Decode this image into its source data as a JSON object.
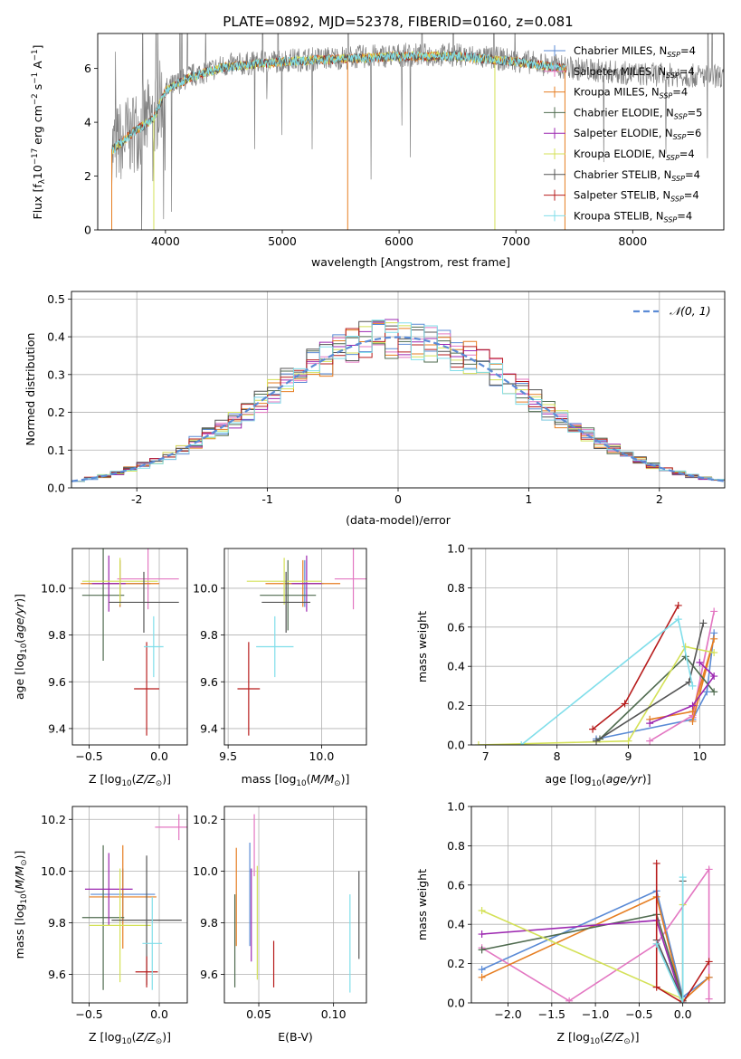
{
  "title": "PLATE=0892, MJD=52378, FIBERID=0160, z=0.081",
  "palette": {
    "Chabrier MILES": "#5b8bd6",
    "Salpeter MILES": "#e377c2",
    "Kroupa MILES": "#e67e22",
    "Chabrier ELODIE": "#4f6b4f",
    "Salpeter ELODIE": "#9c27b0",
    "Kroupa ELODIE": "#d4e157",
    "Chabrier STELIB": "#555555",
    "Salpeter STELIB": "#b71c1c",
    "Kroupa STELIB": "#80deea"
  },
  "chart_data": [
    {
      "id": "spectrum",
      "type": "line",
      "xlabel": "wavelength [Angstrom, rest frame]",
      "ylabel": "Flux [f",
      "ylabel_parts": [
        "Flux [f",
        "λ",
        "10",
        "−17",
        " erg cm",
        "−2",
        " s",
        "−1",
        " A",
        "−1",
        "]"
      ],
      "xlim": [
        3420,
        8780
      ],
      "ylim": [
        0,
        7.3
      ],
      "xticks": [
        4000,
        5000,
        6000,
        7000,
        8000
      ],
      "yticks": [
        0,
        2,
        4,
        6
      ],
      "grid": false,
      "legend_position": "top-right",
      "series": [
        {
          "name": "Chabrier MILES",
          "nssp": "4"
        },
        {
          "name": "Salpeter MILES",
          "nssp": "4"
        },
        {
          "name": "Kroupa MILES",
          "nssp": "4"
        },
        {
          "name": "Chabrier ELODIE",
          "nssp": "5"
        },
        {
          "name": "Salpeter ELODIE",
          "nssp": "6"
        },
        {
          "name": "Kroupa ELODIE",
          "nssp": "4"
        },
        {
          "name": "Chabrier STELIB",
          "nssp": "4"
        },
        {
          "name": "Salpeter STELIB",
          "nssp": "4"
        },
        {
          "name": "Kroupa STELIB",
          "nssp": "4"
        }
      ],
      "data_spectrum": {
        "x_range": [
          3540,
          8780
        ],
        "continuum": [
          [
            3540,
            3.0
          ],
          [
            3700,
            3.6
          ],
          [
            3900,
            4.2
          ],
          [
            4000,
            5.2
          ],
          [
            4200,
            5.7
          ],
          [
            4500,
            6.1
          ],
          [
            5000,
            6.3
          ],
          [
            5500,
            6.4
          ],
          [
            6000,
            6.5
          ],
          [
            6500,
            6.5
          ],
          [
            7000,
            6.3
          ],
          [
            7500,
            6.0
          ],
          [
            8000,
            5.8
          ],
          [
            8780,
            5.7
          ]
        ]
      },
      "model_range": [
        3540,
        7430
      ]
    },
    {
      "id": "residuals",
      "type": "histogram",
      "xlabel": "(data-model)/error",
      "ylabel": "Normed distribution",
      "xlim": [
        -2.5,
        2.5
      ],
      "ylim": [
        0,
        0.52
      ],
      "xticks": [
        -2,
        -1,
        0,
        1,
        2
      ],
      "yticks": [
        0.0,
        0.1,
        0.2,
        0.3,
        0.4,
        0.5
      ],
      "grid": true,
      "legend": "𝒩(0, 1)",
      "legend_position": "top-right",
      "reference_curve": "normal(0,1)",
      "bin_edges_start": -2.5,
      "bin_width": 0.1,
      "bin_count": 50
    },
    {
      "id": "age-vs-Z",
      "type": "errorbar",
      "xlabel": "Z [log10(Z/Z⊙)]",
      "ylabel": "age  [log10(age/yr)]",
      "xlim": [
        -0.62,
        0.2
      ],
      "ylim": [
        9.33,
        10.17
      ],
      "xticks": [
        -0.5,
        0.0
      ],
      "xtick_labels": [
        "−0.5",
        "0.0"
      ],
      "yticks": [
        9.4,
        9.6,
        9.8,
        10.0
      ],
      "grid": true,
      "points": [
        {
          "series": "Chabrier MILES",
          "x": -0.28,
          "y": 10.02,
          "xerr": 0.22,
          "yerr": 0.1
        },
        {
          "series": "Salpeter MILES",
          "x": -0.08,
          "y": 10.04,
          "xerr": 0.22,
          "yerr": 0.13
        },
        {
          "series": "Kroupa MILES",
          "x": -0.28,
          "y": 10.02,
          "xerr": 0.28,
          "yerr": 0.1
        },
        {
          "series": "Chabrier ELODIE",
          "x": -0.4,
          "y": 9.97,
          "xerr": 0.15,
          "yerr": 0.28
        },
        {
          "series": "Salpeter ELODIE",
          "x": -0.36,
          "y": 10.02,
          "xerr": 0.12,
          "yerr": 0.12
        },
        {
          "series": "Kroupa ELODIE",
          "x": -0.28,
          "y": 10.03,
          "xerr": 0.27,
          "yerr": 0.1
        },
        {
          "series": "Chabrier STELIB",
          "x": -0.11,
          "y": 9.94,
          "xerr": 0.25,
          "yerr": 0.13
        },
        {
          "series": "Salpeter STELIB",
          "x": -0.09,
          "y": 9.57,
          "xerr": 0.09,
          "yerr": 0.2
        },
        {
          "series": "Kroupa STELIB",
          "x": -0.04,
          "y": 9.75,
          "xerr": 0.07,
          "yerr": 0.13
        }
      ]
    },
    {
      "id": "age-vs-mass",
      "type": "errorbar",
      "xlabel": "mass [log10(M/M⊙)]",
      "ylabel": "",
      "xlim": [
        9.48,
        10.24
      ],
      "ylim": [
        9.33,
        10.17
      ],
      "xticks": [
        9.5,
        10.0
      ],
      "xtick_labels": [
        "9.5",
        "10.0"
      ],
      "yticks": [
        9.4,
        9.6,
        9.8,
        10.0
      ],
      "grid": true,
      "points": [
        {
          "series": "Chabrier MILES",
          "x": 9.91,
          "y": 10.02,
          "xerr": 0.1,
          "yerr": 0.1
        },
        {
          "series": "Salpeter MILES",
          "x": 10.17,
          "y": 10.04,
          "xerr": 0.1,
          "yerr": 0.13
        },
        {
          "series": "Kroupa MILES",
          "x": 9.9,
          "y": 10.02,
          "xerr": 0.2,
          "yerr": 0.1
        },
        {
          "series": "Chabrier ELODIE",
          "x": 9.82,
          "y": 9.97,
          "xerr": 0.15,
          "yerr": 0.15
        },
        {
          "series": "Salpeter ELODIE",
          "x": 9.92,
          "y": 10.02,
          "xerr": 0.08,
          "yerr": 0.12
        },
        {
          "series": "Kroupa ELODIE",
          "x": 9.8,
          "y": 10.03,
          "xerr": 0.2,
          "yerr": 0.1
        },
        {
          "series": "Chabrier STELIB",
          "x": 9.81,
          "y": 9.94,
          "xerr": 0.13,
          "yerr": 0.13
        },
        {
          "series": "Salpeter STELIB",
          "x": 9.61,
          "y": 9.57,
          "xerr": 0.06,
          "yerr": 0.2
        },
        {
          "series": "Kroupa STELIB",
          "x": 9.75,
          "y": 9.75,
          "xerr": 0.1,
          "yerr": 0.13
        }
      ]
    },
    {
      "id": "weight-vs-age",
      "type": "line",
      "xlabel": "age  [log10(age/yr)]",
      "ylabel": "mass weight",
      "xlim": [
        6.8,
        10.35
      ],
      "ylim": [
        0,
        1.0
      ],
      "xticks": [
        7,
        8,
        9,
        10
      ],
      "yticks": [
        0.0,
        0.2,
        0.4,
        0.6,
        0.8,
        1.0
      ],
      "grid": true,
      "series": [
        {
          "name": "Chabrier MILES",
          "x": [
            8.55,
            9.9,
            10.1,
            10.2
          ],
          "y": [
            0.03,
            0.13,
            0.27,
            0.57
          ]
        },
        {
          "name": "Salpeter MILES",
          "x": [
            9.3,
            9.9,
            10.2,
            9.9
          ],
          "y": [
            0.02,
            0.15,
            0.68,
            0.14
          ]
        },
        {
          "name": "Kroupa MILES",
          "x": [
            9.3,
            9.9,
            10.2,
            9.9
          ],
          "y": [
            0.13,
            0.17,
            0.54,
            0.12
          ]
        },
        {
          "name": "Chabrier ELODIE",
          "x": [
            8.6,
            9.8,
            10.2
          ],
          "y": [
            0.03,
            0.45,
            0.27
          ]
        },
        {
          "name": "Salpeter ELODIE",
          "x": [
            9.3,
            9.9,
            10.2,
            10.0
          ],
          "y": [
            0.11,
            0.2,
            0.35,
            0.42
          ]
        },
        {
          "name": "Kroupa ELODIE",
          "x": [
            6.9,
            9.0,
            9.8,
            10.2
          ],
          "y": [
            0.0,
            0.02,
            0.5,
            0.47
          ]
        },
        {
          "name": "Chabrier STELIB",
          "x": [
            8.55,
            9.85,
            10.05
          ],
          "y": [
            0.02,
            0.32,
            0.62
          ]
        },
        {
          "name": "Salpeter STELIB",
          "x": [
            8.5,
            8.95,
            9.7
          ],
          "y": [
            0.08,
            0.21,
            0.71
          ]
        },
        {
          "name": "Kroupa STELIB",
          "x": [
            7.5,
            9.7,
            9.9
          ],
          "y": [
            0.0,
            0.64,
            0.3
          ]
        }
      ]
    },
    {
      "id": "mass-vs-Z",
      "type": "errorbar",
      "xlabel": "Z [log10(Z/Z⊙)]",
      "ylabel": "mass [log10(M/M⊙)]",
      "xlim": [
        -0.62,
        0.2
      ],
      "ylim": [
        9.49,
        10.25
      ],
      "xticks": [
        -0.5,
        0.0
      ],
      "xtick_labels": [
        "−0.5",
        "0.0"
      ],
      "yticks": [
        9.6,
        9.8,
        10.0,
        10.2
      ],
      "grid": true,
      "points": [
        {
          "series": "Chabrier MILES",
          "x": -0.26,
          "y": 9.91,
          "xerr": 0.23,
          "yerr": 0.1
        },
        {
          "series": "Salpeter MILES",
          "x": 0.14,
          "y": 10.17,
          "xerr": 0.17,
          "yerr": 0.05
        },
        {
          "series": "Kroupa MILES",
          "x": -0.26,
          "y": 9.9,
          "xerr": 0.24,
          "yerr": 0.2
        },
        {
          "series": "Chabrier ELODIE",
          "x": -0.4,
          "y": 9.82,
          "xerr": 0.15,
          "yerr": 0.28
        },
        {
          "series": "Salpeter ELODIE",
          "x": -0.36,
          "y": 9.93,
          "xerr": 0.17,
          "yerr": 0.14
        },
        {
          "series": "Kroupa ELODIE",
          "x": -0.28,
          "y": 9.79,
          "xerr": 0.22,
          "yerr": 0.22
        },
        {
          "series": "Chabrier STELIB",
          "x": -0.09,
          "y": 9.81,
          "xerr": 0.25,
          "yerr": 0.25
        },
        {
          "series": "Salpeter STELIB",
          "x": -0.09,
          "y": 9.61,
          "xerr": 0.08,
          "yerr": 0.06
        },
        {
          "series": "Kroupa STELIB",
          "x": -0.05,
          "y": 9.72,
          "xerr": 0.07,
          "yerr": 0.18
        }
      ]
    },
    {
      "id": "mass-vs-EBV",
      "type": "errorbar",
      "xlabel": "E(B-V)",
      "ylabel": "",
      "xlim": [
        0.027,
        0.122
      ],
      "ylim": [
        9.49,
        10.25
      ],
      "xticks": [
        0.05,
        0.1
      ],
      "xtick_labels": [
        "0.05",
        "0.10"
      ],
      "yticks": [
        9.6,
        9.8,
        10.0,
        10.2
      ],
      "grid": true,
      "points": [
        {
          "series": "Chabrier MILES",
          "x": 0.044,
          "y": 9.91,
          "xerr": 0,
          "yerr": 0.2
        },
        {
          "series": "Salpeter MILES",
          "x": 0.047,
          "y": 10.1,
          "xerr": 0,
          "yerr": 0.12
        },
        {
          "series": "Kroupa MILES",
          "x": 0.035,
          "y": 9.9,
          "xerr": 0,
          "yerr": 0.19
        },
        {
          "series": "Chabrier ELODIE",
          "x": 0.034,
          "y": 9.73,
          "xerr": 0,
          "yerr": 0.18
        },
        {
          "series": "Salpeter ELODIE",
          "x": 0.045,
          "y": 9.83,
          "xerr": 0,
          "yerr": 0.18
        },
        {
          "series": "Kroupa ELODIE",
          "x": 0.049,
          "y": 9.8,
          "xerr": 0,
          "yerr": 0.22
        },
        {
          "series": "Chabrier STELIB",
          "x": 0.117,
          "y": 9.83,
          "xerr": 0,
          "yerr": 0.17
        },
        {
          "series": "Salpeter STELIB",
          "x": 0.06,
          "y": 9.64,
          "xerr": 0,
          "yerr": 0.09
        },
        {
          "series": "Kroupa STELIB",
          "x": 0.111,
          "y": 9.72,
          "xerr": 0,
          "yerr": 0.19
        }
      ]
    },
    {
      "id": "weight-vs-Z",
      "type": "line",
      "xlabel": "Z [log10(Z/Z⊙)]",
      "ylabel": "mass weight",
      "xlim": [
        -2.42,
        0.48
      ],
      "ylim": [
        0,
        1.0
      ],
      "xticks": [
        -2.0,
        -1.5,
        -1.0,
        -0.5,
        0.0
      ],
      "xtick_labels": [
        "−2.0",
        "−1.5",
        "−1.0",
        "−0.5",
        "0.0"
      ],
      "yticks": [
        0.0,
        0.2,
        0.4,
        0.6,
        0.8,
        1.0
      ],
      "grid": true,
      "series": [
        {
          "name": "Chabrier MILES",
          "x": [
            -2.3,
            -0.3,
            0.0,
            0.3
          ],
          "y": [
            0.17,
            0.57,
            0.03,
            0.13
          ]
        },
        {
          "name": "Salpeter MILES",
          "x": [
            -2.3,
            -1.3,
            -0.3,
            0.3,
            0.3
          ],
          "y": [
            0.28,
            0.01,
            0.3,
            0.68,
            0.02
          ]
        },
        {
          "name": "Kroupa MILES",
          "x": [
            -2.3,
            -0.3,
            0.0,
            0.3
          ],
          "y": [
            0.13,
            0.54,
            0.01,
            0.13
          ]
        },
        {
          "name": "Chabrier ELODIE",
          "x": [
            -2.3,
            -0.3,
            0.0
          ],
          "y": [
            0.27,
            0.45,
            0.02
          ]
        },
        {
          "name": "Salpeter ELODIE",
          "x": [
            -2.3,
            -0.3,
            0.0
          ],
          "y": [
            0.35,
            0.42,
            0.0
          ]
        },
        {
          "name": "Kroupa ELODIE",
          "x": [
            -2.3,
            0.0,
            0.0
          ],
          "y": [
            0.47,
            0.02,
            0.5
          ]
        },
        {
          "name": "Chabrier STELIB",
          "x": [
            -0.3,
            0.0,
            0.0
          ],
          "y": [
            0.32,
            0.01,
            0.62
          ]
        },
        {
          "name": "Salpeter STELIB",
          "x": [
            -0.3,
            -0.3,
            0.0,
            0.3
          ],
          "y": [
            0.71,
            0.08,
            0.0,
            0.21
          ]
        },
        {
          "name": "Kroupa STELIB",
          "x": [
            -0.3,
            0.0,
            0.0
          ],
          "y": [
            0.3,
            0.0,
            0.64
          ]
        }
      ]
    }
  ]
}
